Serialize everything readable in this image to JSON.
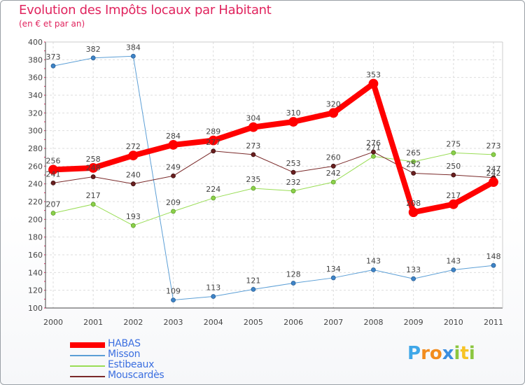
{
  "title": "Evolution des Impôts locaux par Habitant",
  "subtitle": "(en € et par an)",
  "logo": {
    "text": "Proxiti",
    "letters": [
      {
        "ch": "P",
        "color": "#3fa7e8"
      },
      {
        "ch": "r",
        "color": "#f28c1e"
      },
      {
        "ch": "o",
        "color": "#f28c1e"
      },
      {
        "ch": "x",
        "color": "#3b8ee0"
      },
      {
        "ch": "i",
        "color": "#8cc63f"
      },
      {
        "ch": "t",
        "color": "#f7c325"
      },
      {
        "ch": "i",
        "color": "#8cc63f"
      }
    ]
  },
  "chart_data": {
    "type": "line",
    "title": "Evolution des Impôts locaux par Habitant",
    "subtitle": "(en € et par an)",
    "x": [
      "2000",
      "2001",
      "2002",
      "2003",
      "2004",
      "2005",
      "2006",
      "2007",
      "2008",
      "2009",
      "2010",
      "2011"
    ],
    "ylim": [
      100,
      400
    ],
    "yticks": [
      100,
      120,
      140,
      160,
      180,
      200,
      220,
      240,
      260,
      280,
      300,
      320,
      340,
      360,
      380,
      400
    ],
    "grid": true,
    "legend_position": "bottom-left",
    "series": [
      {
        "name": "HABAS",
        "color": "#ff0000",
        "values": [
          256,
          258,
          272,
          284,
          289,
          304,
          310,
          320,
          353,
          208,
          217,
          242
        ]
      },
      {
        "name": "Misson",
        "color": "#5c9fd6",
        "values": [
          373,
          382,
          384,
          109,
          113,
          121,
          128,
          134,
          143,
          133,
          143,
          148
        ]
      },
      {
        "name": "Estibeaux",
        "color": "#99dd55",
        "values": [
          207,
          217,
          193,
          209,
          224,
          235,
          232,
          242,
          271,
          265,
          275,
          273
        ]
      },
      {
        "name": "Mouscardès",
        "color": "#7a2a2a",
        "values": [
          241,
          248,
          240,
          249,
          277,
          273,
          253,
          260,
          276,
          252,
          250,
          247
        ]
      }
    ]
  }
}
